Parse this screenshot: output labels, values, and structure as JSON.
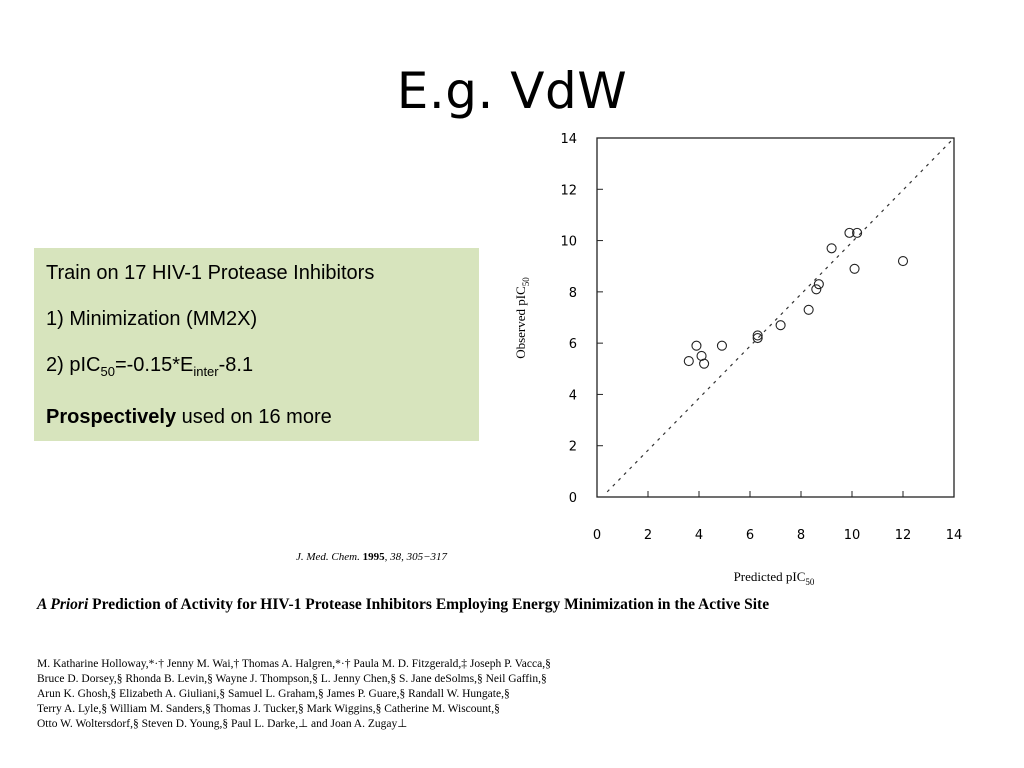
{
  "slide": {
    "title": "E.g. VdW"
  },
  "box": {
    "line1": "Train on 17 HIV-1 Protease Inhibitors",
    "line2": "1) Minimization (MM2X)",
    "line3_prefix": "2) pIC",
    "line3_sub1": "50",
    "line3_mid": "=-0.15*E",
    "line3_sub2": "inter",
    "line3_suffix": "-8.1",
    "line4_bold": "Prospectively",
    "line4_rest": " used on 16 more"
  },
  "citation": {
    "journal": "J. Med. Chem.",
    "year": "1995",
    "rest": ", 38, 305−317"
  },
  "paper": {
    "title_italic": "A Priori",
    "title_rest": " Prediction of Activity for HIV-1 Protease Inhibitors Employing Energy Minimization in the Active Site",
    "author_lines": [
      "M. Katharine Holloway,*·† Jenny M. Wai,† Thomas A. Halgren,*·† Paula M. D. Fitzgerald,‡ Joseph P. Vacca,§",
      "Bruce D. Dorsey,§ Rhonda B. Levin,§ Wayne J. Thompson,§ L. Jenny Chen,§ S. Jane deSolms,§ Neil Gaffin,§",
      "Arun K. Ghosh,§ Elizabeth A. Giuliani,§ Samuel L. Graham,§ James P. Guare,§ Randall W. Hungate,§",
      "Terry A. Lyle,§ William M. Sanders,§ Thomas J. Tucker,§ Mark Wiggins,§ Catherine M. Wiscount,§",
      "Otto W. Woltersdorf,§ Steven D. Young,§ Paul L. Darke,⊥ and Joan A. Zugay⊥"
    ]
  },
  "chart_data": {
    "type": "scatter",
    "xlabel": "Predicted pIC",
    "xlabel_sub": "50",
    "ylabel": "Observed pIC",
    "ylabel_sub": "50",
    "xlim": [
      0,
      14
    ],
    "ylim": [
      0,
      14
    ],
    "x_ticks": [
      "0",
      "2",
      "4",
      "6",
      "8",
      "10",
      "12",
      "14"
    ],
    "y_ticks": [
      "0",
      "2",
      "4",
      "6",
      "8",
      "10",
      "12",
      "14"
    ],
    "grid": false,
    "reference_line": "y = x (dashed)",
    "points": [
      {
        "x": 3.6,
        "y": 5.3
      },
      {
        "x": 3.9,
        "y": 5.9
      },
      {
        "x": 4.1,
        "y": 5.5
      },
      {
        "x": 4.2,
        "y": 5.2
      },
      {
        "x": 4.9,
        "y": 5.9
      },
      {
        "x": 6.3,
        "y": 6.3
      },
      {
        "x": 6.3,
        "y": 6.2
      },
      {
        "x": 7.2,
        "y": 6.7
      },
      {
        "x": 8.3,
        "y": 7.3
      },
      {
        "x": 8.6,
        "y": 8.1
      },
      {
        "x": 8.7,
        "y": 8.3
      },
      {
        "x": 9.2,
        "y": 9.7
      },
      {
        "x": 9.9,
        "y": 10.3
      },
      {
        "x": 10.2,
        "y": 10.3
      },
      {
        "x": 10.1,
        "y": 8.9
      },
      {
        "x": 12.0,
        "y": 9.2
      }
    ]
  }
}
